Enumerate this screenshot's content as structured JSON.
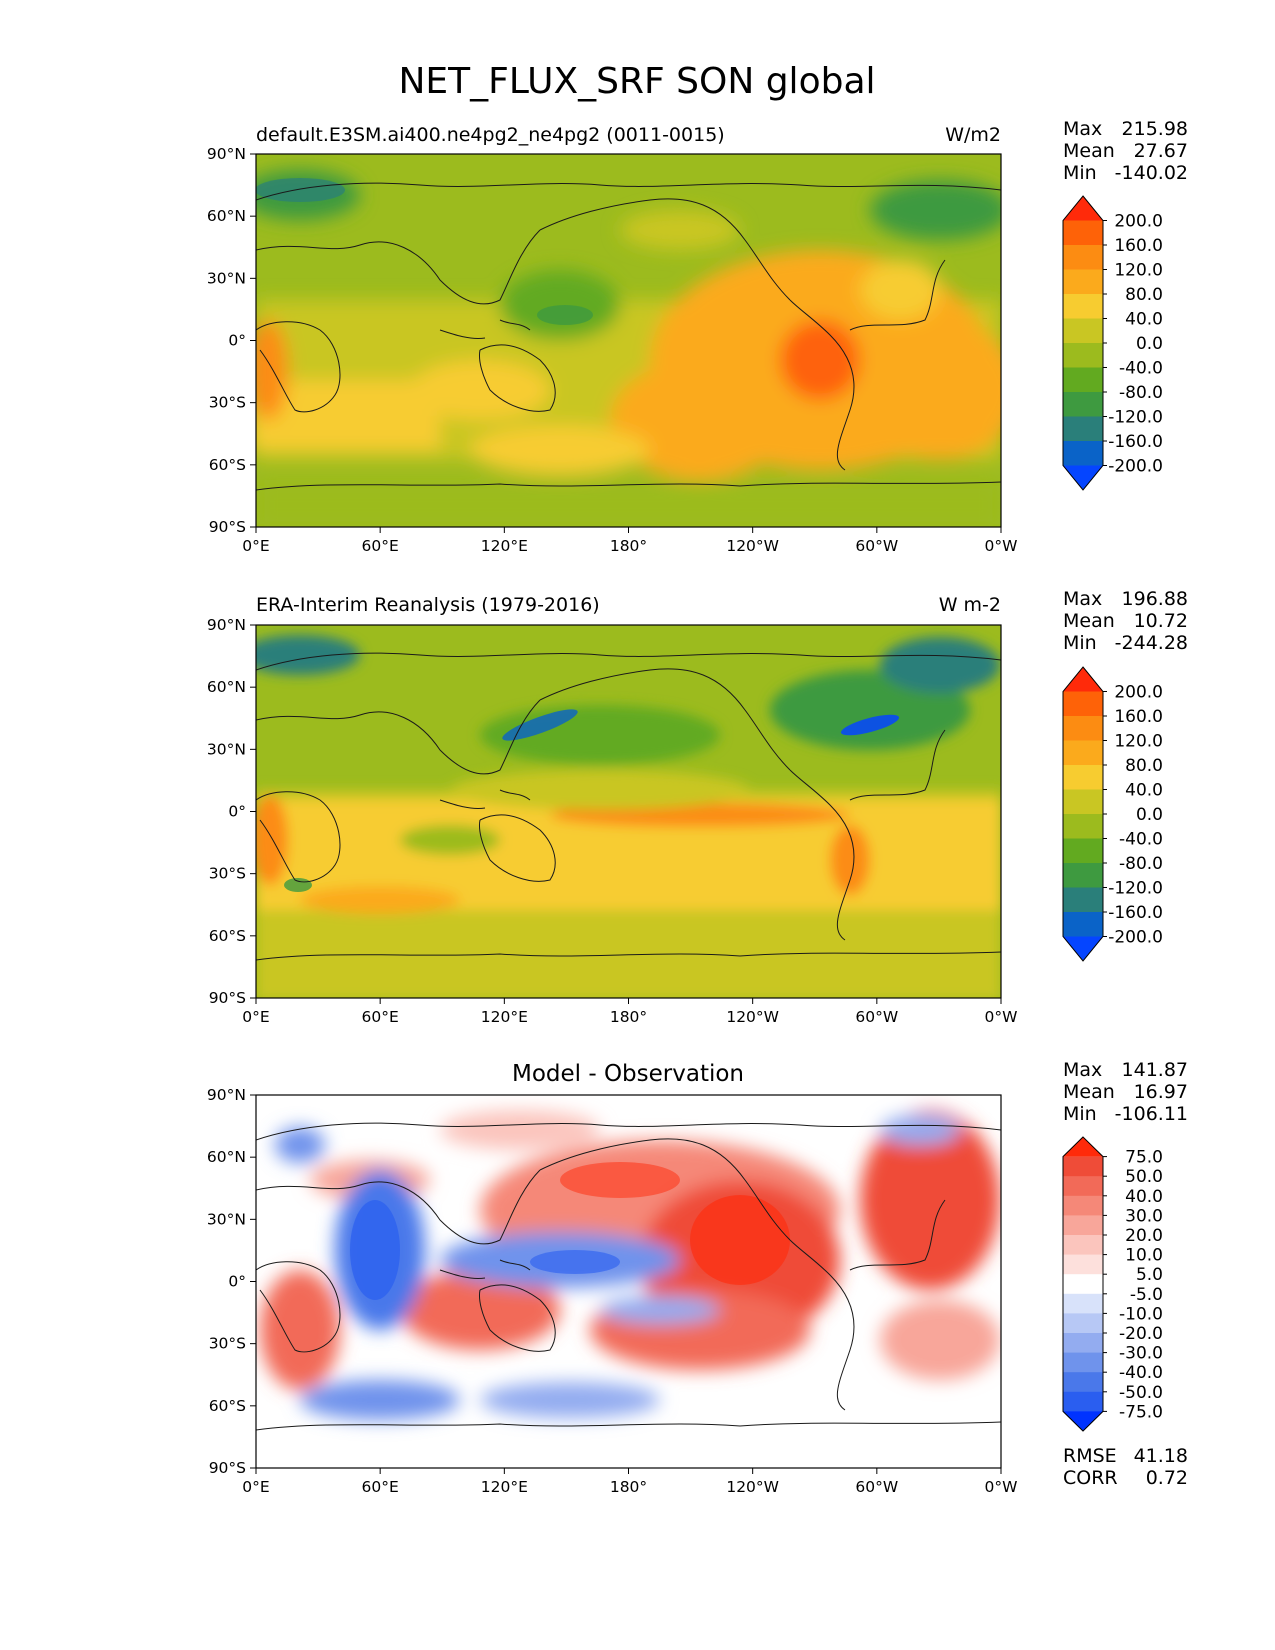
{
  "figure": {
    "title": "NET_FLUX_SRF SON global",
    "x_tick_labels": [
      "0°E",
      "60°E",
      "120°E",
      "180°",
      "120°W",
      "60°W",
      "0°W"
    ],
    "y_tick_labels": [
      "90°N",
      "60°N",
      "30°N",
      "0°",
      "30°S",
      "60°S",
      "90°S"
    ]
  },
  "panels": [
    {
      "id": "model",
      "title_left": "default.E3SM.ai400.ne4pg2_ne4pg2 (0011-0015)",
      "title_center": "",
      "units": "W/m2",
      "stats": [
        {
          "label": "Max",
          "value": "215.98"
        },
        {
          "label": "Mean",
          "value": "27.67"
        },
        {
          "label": "Min",
          "value": "-140.02"
        }
      ],
      "colorbar_labels": [
        "200.0",
        "160.0",
        "120.0",
        "80.0",
        "40.0",
        "0.0",
        "-40.0",
        "-80.0",
        "-120.0",
        "-160.0",
        "-200.0"
      ],
      "colorbar_colors": [
        "#0545ff",
        "#0a63c8",
        "#2a7f7a",
        "#3e9a40",
        "#62aa20",
        "#9cbb1e",
        "#c9c623",
        "#f7cc30",
        "#fbaa1c",
        "#fc8c12",
        "#fe6208",
        "#ff2a0a"
      ]
    },
    {
      "id": "obs",
      "title_left": "ERA-Interim Reanalysis (1979-2016)",
      "title_center": "",
      "units": "W m-2",
      "stats": [
        {
          "label": "Max",
          "value": "196.88"
        },
        {
          "label": "Mean",
          "value": "10.72"
        },
        {
          "label": "Min",
          "value": "-244.28"
        }
      ],
      "colorbar_labels": [
        "200.0",
        "160.0",
        "120.0",
        "80.0",
        "40.0",
        "0.0",
        "-40.0",
        "-80.0",
        "-120.0",
        "-160.0",
        "-200.0"
      ],
      "colorbar_colors": [
        "#0545ff",
        "#0a63c8",
        "#2a7f7a",
        "#3e9a40",
        "#62aa20",
        "#9cbb1e",
        "#c9c623",
        "#f7cc30",
        "#fbaa1c",
        "#fc8c12",
        "#fe6208",
        "#ff2a0a"
      ]
    },
    {
      "id": "diff",
      "title_left": "",
      "title_center": "Model - Observation",
      "units": "",
      "stats": [
        {
          "label": "Max",
          "value": "141.87"
        },
        {
          "label": "Mean",
          "value": "16.97"
        },
        {
          "label": "Min",
          "value": "-106.11"
        }
      ],
      "extra_stats": [
        {
          "label": "RMSE",
          "value": "41.18"
        },
        {
          "label": "CORR",
          "value": "0.72"
        }
      ],
      "colorbar_labels": [
        "75.0",
        "50.0",
        "40.0",
        "30.0",
        "20.0",
        "10.0",
        "5.0",
        "-5.0",
        "-10.0",
        "-20.0",
        "-30.0",
        "-40.0",
        "-50.0",
        "-75.0"
      ],
      "colorbar_colors": [
        "#0033ff",
        "#2a5ef0",
        "#4a78ea",
        "#6f93ec",
        "#93acf0",
        "#b7c8f5",
        "#d8e2fa",
        "#ffffff",
        "#fde0dc",
        "#fbc5bd",
        "#f8a69a",
        "#f58878",
        "#f26a58",
        "#ef4c38",
        "#ff2a0a"
      ]
    }
  ],
  "chart_data": {
    "type": "heatmap",
    "title": "NET_FLUX_SRF SON global",
    "variable": "NET_FLUX_SRF",
    "season": "SON",
    "x_axis": {
      "range": [
        0,
        360
      ],
      "ticks": [
        "0°E",
        "60°E",
        "120°E",
        "180°",
        "120°W",
        "60°W",
        "0°W"
      ]
    },
    "y_axis": {
      "range": [
        -90,
        90
      ],
      "ticks": [
        "90°N",
        "60°N",
        "30°N",
        "0°",
        "30°S",
        "60°S",
        "90°S"
      ]
    },
    "maps": [
      {
        "name": "default.E3SM.ai400.ne4pg2_ne4pg2 (0011-0015)",
        "units": "W/m2",
        "max": 215.98,
        "mean": 27.67,
        "min": -140.02,
        "levels": [
          -200,
          -160,
          -120,
          -80,
          -40,
          0,
          40,
          80,
          120,
          160,
          200
        ]
      },
      {
        "name": "ERA-Interim Reanalysis (1979-2016)",
        "units": "W m-2",
        "max": 196.88,
        "mean": 10.72,
        "min": -244.28,
        "levels": [
          -200,
          -160,
          -120,
          -80,
          -40,
          0,
          40,
          80,
          120,
          160,
          200
        ]
      },
      {
        "name": "Model - Observation",
        "units": "",
        "max": 141.87,
        "mean": 16.97,
        "min": -106.11,
        "rmse": 41.18,
        "corr": 0.72,
        "levels": [
          -75,
          -50,
          -40,
          -30,
          -20,
          -10,
          -5,
          5,
          10,
          20,
          30,
          40,
          50,
          75
        ]
      }
    ]
  }
}
